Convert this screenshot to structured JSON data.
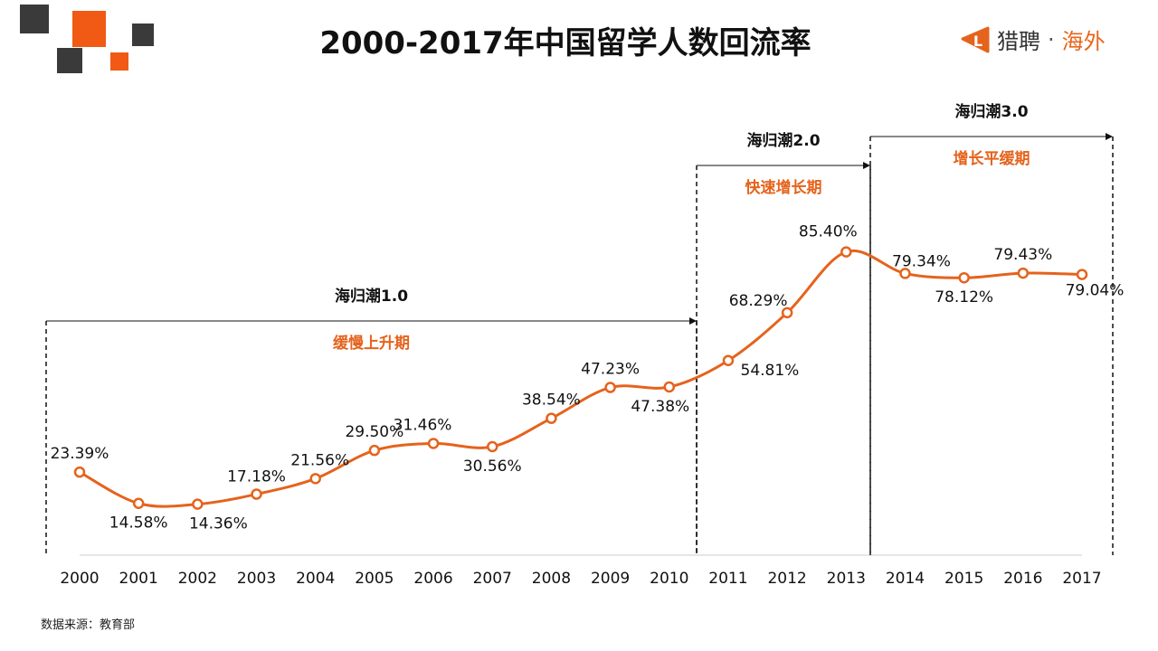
{
  "colors": {
    "line": "#e5631c",
    "accent": "#e5631c",
    "cube_dark": "#3a3a3a"
  },
  "brand": {
    "logo_letter": "L",
    "name": "猎聘",
    "separator": "·",
    "sub": "海外"
  },
  "source": "数据来源：教育部",
  "chart_data": {
    "type": "line",
    "title": "2000-2017年中国留学人数回流率",
    "xlabel": "",
    "ylabel": "",
    "grid": false,
    "categories": [
      "2000",
      "2001",
      "2002",
      "2003",
      "2004",
      "2005",
      "2006",
      "2007",
      "2008",
      "2009",
      "2010",
      "2011",
      "2012",
      "2013",
      "2014",
      "2015",
      "2016",
      "2017"
    ],
    "values": [
      23.39,
      14.58,
      14.36,
      17.18,
      21.56,
      29.5,
      31.46,
      30.56,
      38.54,
      47.23,
      47.38,
      54.81,
      68.29,
      85.4,
      79.34,
      78.12,
      79.43,
      79.04
    ],
    "data_labels": [
      "23.39%",
      "14.58%",
      "14.36%",
      "17.18%",
      "21.56%",
      "29.50%",
      "31.46%",
      "30.56%",
      "38.54%",
      "47.23%",
      "47.38%",
      "54.81%",
      "68.29%",
      "85.40%",
      "79.34%",
      "78.12%",
      "79.43%",
      "79.04%"
    ],
    "annotations": [
      {
        "label": "海归潮1.0",
        "phase": "缓慢上升期",
        "from": "2000",
        "to": "2010"
      },
      {
        "label": "海归潮2.0",
        "phase": "快速增长期",
        "from": "2011",
        "to": "2013"
      },
      {
        "label": "海归潮3.0",
        "phase": "增长平缓期",
        "from": "2014",
        "to": "2017"
      }
    ]
  }
}
